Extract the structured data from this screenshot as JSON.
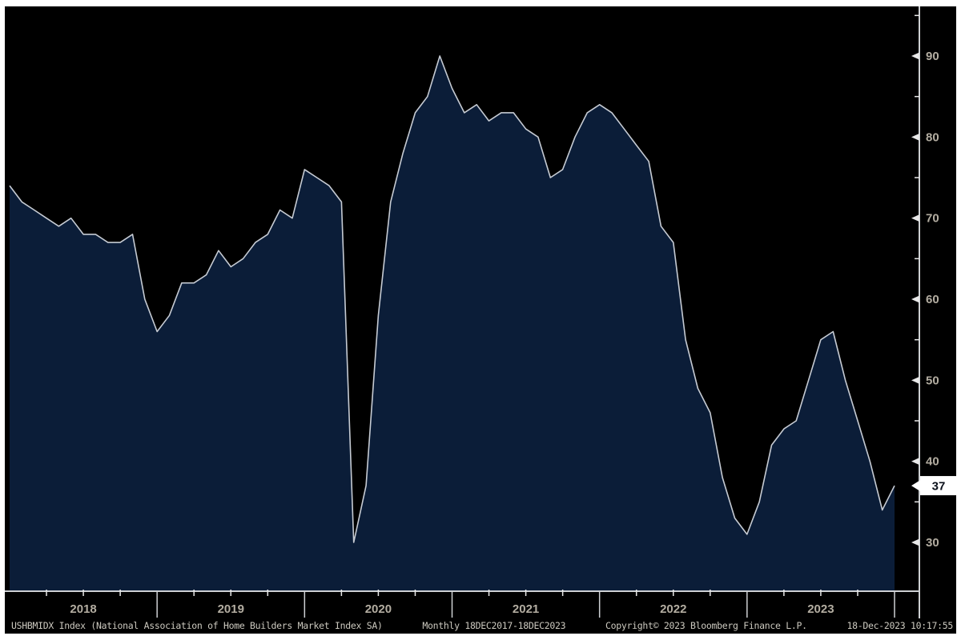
{
  "chart_data": {
    "type": "area",
    "title": "",
    "series_name": "USHBMIDX Index (National Association of Home Builders Market Index SA)",
    "frequency": "Monthly",
    "date_range": "18DEC2017-18DEC2023",
    "x": {
      "start": "2017-12",
      "end": "2023-12",
      "freq": "monthly",
      "points": 73
    },
    "values": [
      74,
      72,
      71,
      70,
      69,
      70,
      68,
      68,
      67,
      67,
      68,
      60,
      56,
      58,
      62,
      62,
      63,
      66,
      64,
      65,
      67,
      68,
      71,
      70,
      76,
      75,
      74,
      72,
      30,
      37,
      58,
      72,
      78,
      83,
      85,
      90,
      86,
      83,
      84,
      82,
      83,
      83,
      81,
      80,
      75,
      76,
      80,
      83,
      84,
      83,
      81,
      79,
      77,
      69,
      67,
      55,
      49,
      46,
      38,
      33,
      31,
      35,
      42,
      44,
      45,
      50,
      55,
      56,
      50,
      45,
      40,
      34,
      37
    ],
    "last_value": 37,
    "year_labels": [
      {
        "label": "2018",
        "center_index": 6
      },
      {
        "label": "2019",
        "center_index": 18
      },
      {
        "label": "2020",
        "center_index": 30
      },
      {
        "label": "2021",
        "center_index": 42
      },
      {
        "label": "2022",
        "center_index": 54
      },
      {
        "label": "2023",
        "center_index": 66
      }
    ],
    "year_tick_indices": [
      12,
      24,
      36,
      48,
      60,
      72
    ],
    "y_axis": {
      "side": "right",
      "major_ticks": [
        90,
        80,
        70,
        60,
        50,
        40,
        30
      ],
      "minor_ticks": [
        95,
        85,
        75,
        65,
        55,
        45,
        35
      ]
    },
    "ylim_visible": [
      24,
      96
    ],
    "grid": false,
    "legend": "none",
    "colors": {
      "background": "#000000",
      "frame": "#ffffff",
      "fill": "#0b1d38",
      "line": "#c6cbd3",
      "axis": "#cdd0d3",
      "tick": "#e8e8e8",
      "tick_label": "#b3ada1",
      "badge_bg": "#ffffff",
      "badge_text": "#0a0f1a"
    }
  },
  "footer": {
    "segments": [
      "USHBMIDX Index (National Association of Home Builders Market Index SA)",
      "Monthly 18DEC2017-18DEC2023",
      "Copyright© 2023 Bloomberg Finance L.P.",
      "18-Dec-2023 10:17:55"
    ]
  }
}
